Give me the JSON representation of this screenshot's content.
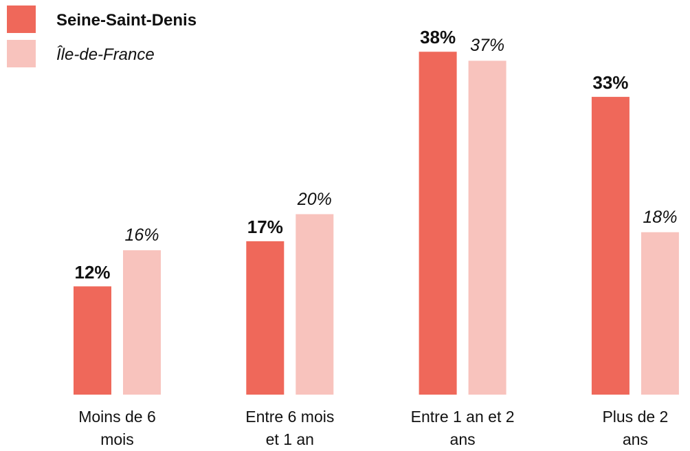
{
  "chart_data": {
    "type": "bar",
    "categories": [
      "Moins de 6 mois",
      "Entre 6 mois et 1 an",
      "Entre 1 an et 2 ans",
      "Plus de 2 ans"
    ],
    "series": [
      {
        "name": "Seine-Saint-Denis",
        "color": "#ef685a",
        "values": [
          12,
          17,
          38,
          33
        ],
        "value_labels": [
          "12%",
          "17%",
          "38%",
          "33%"
        ]
      },
      {
        "name": "Île-de-France",
        "color": "#f8c3bd",
        "values": [
          16,
          20,
          37,
          18
        ],
        "value_labels": [
          "16%",
          "20%",
          "37%",
          "18%"
        ]
      }
    ],
    "ylim": [
      0,
      40
    ],
    "legend": "top-left"
  }
}
